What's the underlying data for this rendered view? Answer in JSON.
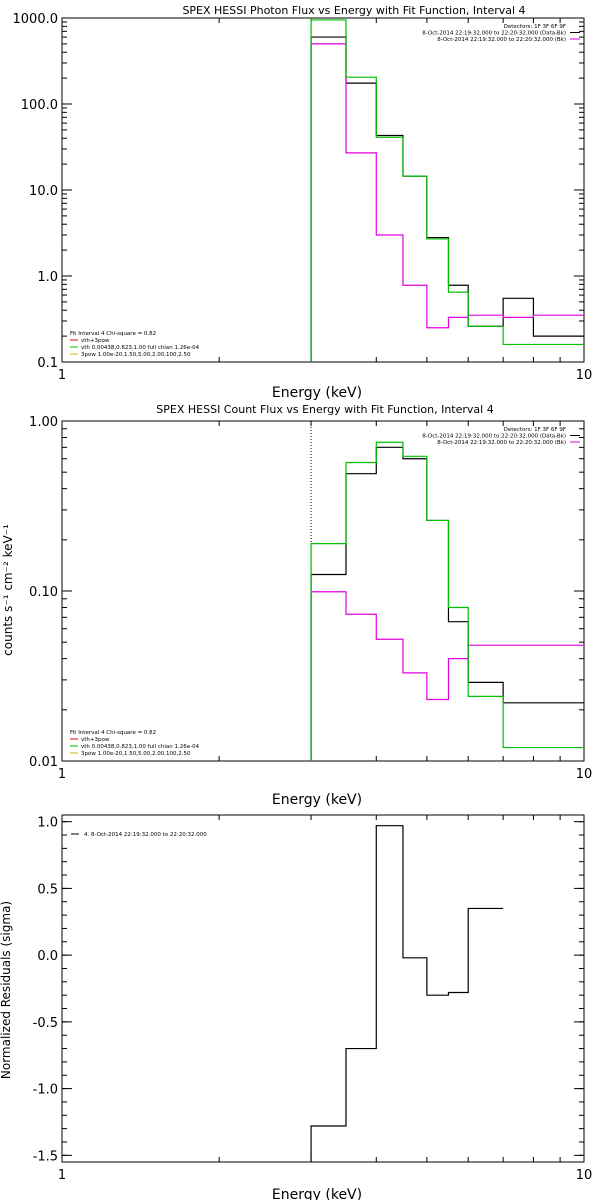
{
  "chart_data": [
    {
      "type": "line",
      "title": "SPEX HESSI Photon Flux vs Energy with Fit Function, Interval 4",
      "xlabel": "Energy (keV)",
      "ylabel": "",
      "xscale": "log",
      "yscale": "log",
      "xlim": [
        1,
        10
      ],
      "ylim": [
        0.1,
        1000
      ],
      "xticks": [
        {
          "v": 1,
          "label": "1"
        },
        {
          "v": 10,
          "label": "10"
        }
      ],
      "yticks": [
        {
          "v": 0.1,
          "label": "0.1"
        },
        {
          "v": 1,
          "label": "1.0"
        },
        {
          "v": 10,
          "label": "10.0"
        },
        {
          "v": 100,
          "label": "100.0"
        },
        {
          "v": 1000,
          "label": "1000.0"
        }
      ],
      "vline": {
        "x": 3.0,
        "color": "#00c000",
        "style": "dotted"
      },
      "legend_top_right": {
        "position": "top-right",
        "lines": [
          {
            "text": "Detectors: 1F 3F 6F 9F",
            "color": ""
          },
          {
            "text": "8-Oct-2014 22:19:32.000 to 22:20:32.000 (Data-Bk)",
            "color": "#000000"
          },
          {
            "text": "8-Oct-2014 22:19:32.000 to 22:20:32.000 (Bk)",
            "color": "#e000e0"
          }
        ]
      },
      "legend_bottom_left": {
        "position": "bottom-left",
        "lines": [
          {
            "text": "Fit Interval 4   Chi-square = 0.82",
            "color": ""
          },
          {
            "text": "vth+3pow",
            "color": "#e00000"
          },
          {
            "text": "vth 0.00438,0.823,1.00  full chian 1.26e-04",
            "color": "#00c000"
          },
          {
            "text": "3pow 1.00e-20,1.50,5.00,2.00,100,2.50",
            "color": "#d4b000"
          }
        ]
      },
      "edges": [
        3.0,
        3.5,
        4.0,
        4.5,
        5.0,
        5.5,
        6.0,
        7.0,
        8.0,
        9.0,
        10.0
      ],
      "series": [
        {
          "name": "",
          "color": "#000000",
          "values": [
            600,
            175,
            43,
            14.5,
            2.8,
            0.78,
            0.26,
            0.55,
            0.2,
            0.2
          ]
        },
        {
          "name": "",
          "color": "#e000e0",
          "values": [
            500,
            27,
            3.0,
            0.78,
            0.25,
            0.33,
            0.35,
            0.33,
            0.35,
            0.35
          ]
        },
        {
          "name": "",
          "color": "#00c000",
          "values": [
            950,
            205,
            41,
            14.5,
            2.7,
            0.65,
            0.26,
            0.16,
            0.16,
            0.16
          ]
        }
      ]
    },
    {
      "type": "line",
      "title": "SPEX HESSI Count Flux vs Energy with Fit Function, Interval 4",
      "xlabel": "Energy (keV)",
      "ylabel": "counts s⁻¹ cm⁻² keV⁻¹",
      "xscale": "log",
      "yscale": "log",
      "xlim": [
        1,
        10
      ],
      "ylim": [
        0.01,
        1
      ],
      "xticks": [
        {
          "v": 1,
          "label": "1"
        },
        {
          "v": 10,
          "label": "10"
        }
      ],
      "yticks": [
        {
          "v": 0.01,
          "label": "0.01"
        },
        {
          "v": 0.1,
          "label": "0.10"
        },
        {
          "v": 1,
          "label": "1.00"
        }
      ],
      "vline": {
        "x": 3.0,
        "color": "#000000",
        "style": "dotted"
      },
      "legend_top_right": {
        "position": "top-right",
        "lines": [
          {
            "text": "Detectors: 1F 3F 6F 9F",
            "color": ""
          },
          {
            "text": "8-Oct-2014 22:19:32.000 to 22:20:32.000 (Data-Bk)",
            "color": "#000000"
          },
          {
            "text": "8-Oct-2014 22:19:32.000 to 22:20:32.000 (Bk)",
            "color": "#e000e0"
          }
        ]
      },
      "legend_bottom_left": {
        "position": "bottom-left",
        "lines": [
          {
            "text": "Fit Interval 4   Chi-square = 0.82",
            "color": ""
          },
          {
            "text": "vth+3pow",
            "color": "#e00000"
          },
          {
            "text": "vth 0.00438,0.823,1.00  full chian 1.26e-04",
            "color": "#00c000"
          },
          {
            "text": "3pow 1.00e-20,1.50,5.00,2.00,100,2.50",
            "color": "#d4b000"
          }
        ]
      },
      "edges": [
        3.0,
        3.5,
        4.0,
        4.5,
        5.0,
        5.5,
        6.0,
        7.0,
        8.0,
        9.0,
        10.0
      ],
      "series": [
        {
          "name": "",
          "color": "#000000",
          "values": [
            0.125,
            0.49,
            0.7,
            0.6,
            0.26,
            0.066,
            0.029,
            0.022,
            0.022,
            0.022
          ]
        },
        {
          "name": "",
          "color": "#e000e0",
          "values": [
            0.099,
            0.073,
            0.052,
            0.033,
            0.023,
            0.04,
            0.048,
            0.048,
            0.048,
            0.048
          ]
        },
        {
          "name": "",
          "color": "#00c000",
          "values": [
            0.19,
            0.57,
            0.75,
            0.62,
            0.26,
            0.08,
            0.024,
            0.012,
            0.012,
            0.012
          ]
        }
      ]
    },
    {
      "type": "line",
      "title": "",
      "xlabel": "Energy (keV)",
      "ylabel": "Normalized Residuals (sigma)",
      "xscale": "log",
      "yscale": "linear",
      "xlim": [
        1,
        10
      ],
      "ylim": [
        -1.55,
        1.05
      ],
      "xticks": [
        {
          "v": 1,
          "label": "1"
        },
        {
          "v": 10,
          "label": "10"
        }
      ],
      "yticks": [
        {
          "v": -1.5,
          "label": "-1.5"
        },
        {
          "v": -1.0,
          "label": "-1.0"
        },
        {
          "v": -0.5,
          "label": "-0.5"
        },
        {
          "v": 0.0,
          "label": "0.0"
        },
        {
          "v": 0.5,
          "label": "0.5"
        },
        {
          "v": 1.0,
          "label": "1.0"
        }
      ],
      "legend_top_left": {
        "position": "top-left",
        "lines": [
          {
            "text": "4. 8-Oct-2014 22:19:32.000 to 22:20:32.000",
            "color": "#000000"
          }
        ]
      },
      "edges": [
        3.0,
        3.5,
        4.0,
        4.5,
        5.0,
        5.5,
        6.0,
        7.0
      ],
      "series": [
        {
          "name": "",
          "color": "#000000",
          "values": [
            -1.28,
            -0.7,
            0.97,
            -0.02,
            -0.3,
            -0.28,
            0.35
          ]
        }
      ]
    }
  ]
}
